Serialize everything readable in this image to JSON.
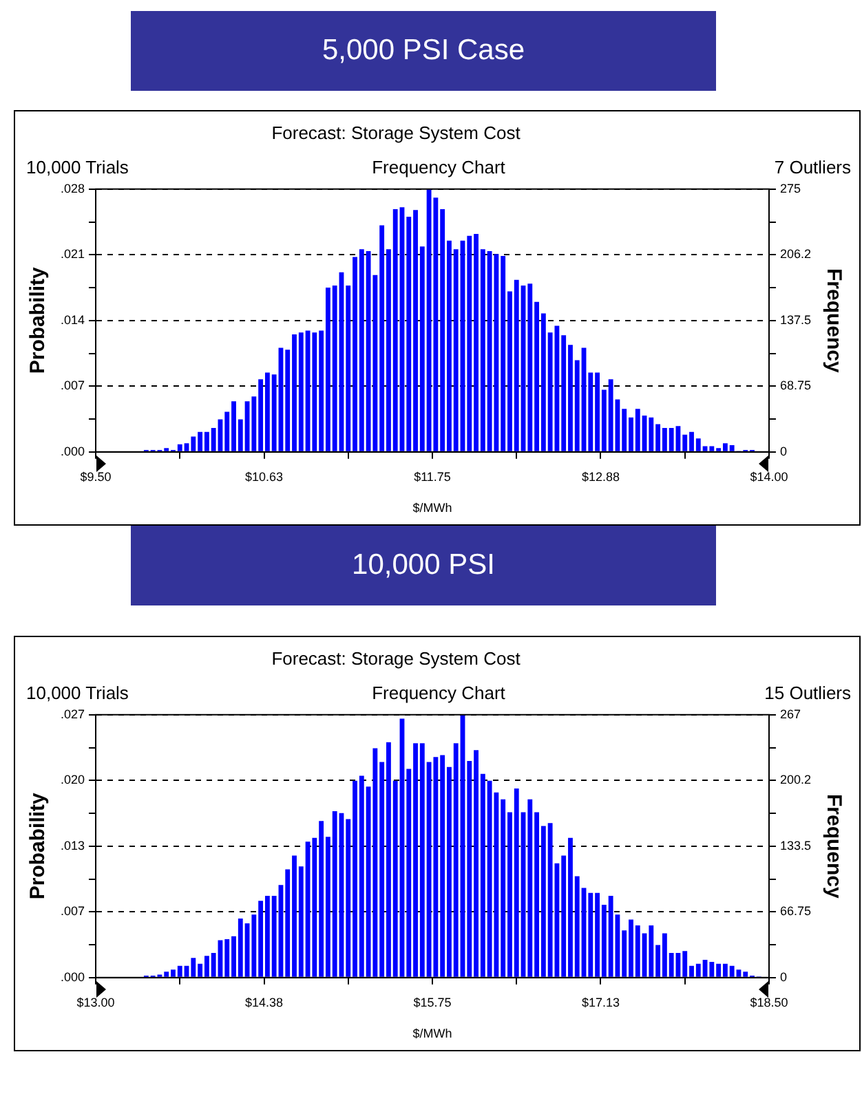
{
  "chart_data": [
    {
      "type": "histogram",
      "title": "5,000 PSI Case",
      "subtitle": "Forecast: Storage System Cost",
      "annotations": [
        "10,000 Trials",
        "Frequency Chart",
        "7 Outliers"
      ],
      "xlabel": "$/MWh",
      "ylabel": "Probability",
      "y2label": "Frequency",
      "grid": "y",
      "bins": [
        9.815,
        9.86,
        9.905,
        9.95,
        9.995,
        10.04,
        10.085,
        10.13,
        10.175,
        10.22,
        10.265,
        10.31,
        10.355,
        10.4,
        10.445,
        10.49,
        10.535,
        10.58,
        10.625,
        10.67,
        10.715,
        10.76,
        10.805,
        10.85,
        10.895,
        10.94,
        10.985,
        11.03,
        11.075,
        11.12,
        11.165,
        11.21,
        11.255,
        11.3,
        11.345,
        11.39,
        11.435,
        11.48,
        11.525,
        11.57,
        11.615,
        11.66,
        11.705,
        11.75,
        11.795,
        11.84,
        11.885,
        11.93,
        11.975,
        12.02,
        12.065,
        12.11,
        12.155,
        12.2,
        12.245,
        12.29,
        12.335,
        12.38,
        12.425,
        12.47,
        12.515,
        12.56,
        12.605,
        12.65,
        12.695,
        12.74,
        12.785,
        12.83,
        12.875,
        12.92,
        12.965,
        13.01,
        13.055,
        13.1,
        13.145,
        13.19,
        13.235,
        13.28,
        13.325,
        13.37,
        13.415,
        13.46,
        13.505,
        13.55,
        13.595,
        13.64,
        13.685,
        13.73,
        13.775,
        13.82,
        13.865,
        13.91
      ],
      "series": [
        {
          "color": "#0000ff",
          "axis": "y2",
          "values": [
            2,
            2,
            2,
            4,
            2,
            8,
            9,
            16,
            21,
            21,
            25,
            34,
            42,
            53,
            34,
            53,
            58,
            76,
            83,
            81,
            109,
            107,
            123,
            125,
            127,
            125,
            127,
            172,
            174,
            188,
            174,
            204,
            212,
            210,
            185,
            237,
            212,
            254,
            256,
            246,
            253,
            215,
            275,
            266,
            254,
            221,
            212,
            221,
            226,
            228,
            212,
            210,
            207,
            205,
            168,
            180,
            174,
            176,
            157,
            145,
            125,
            132,
            122,
            112,
            96,
            109,
            83,
            83,
            65,
            76,
            55,
            45,
            36,
            45,
            38,
            36,
            29,
            25,
            25,
            27,
            18,
            21,
            14,
            6,
            6,
            4,
            9,
            7,
            1,
            2,
            2
          ]
        }
      ],
      "xlim": [
        9.5,
        14
      ],
      "xticks": [
        {
          "value": 9.5,
          "label": "$9.50"
        },
        {
          "value": 10.0625,
          "label": null
        },
        {
          "value": 10.625,
          "label": "$10.63"
        },
        {
          "value": 11.1875,
          "label": null
        },
        {
          "value": 11.75,
          "label": "$11.75"
        },
        {
          "value": 12.3125,
          "label": null
        },
        {
          "value": 12.875,
          "label": "$12.88"
        },
        {
          "value": 13.4375,
          "label": null
        },
        {
          "value": 14,
          "label": "$14.00"
        }
      ],
      "ylim": [
        0,
        0.0275
      ],
      "yticks": [
        {
          "value": 0,
          "label": ".000"
        },
        {
          "value": 0.0034375,
          "label": null
        },
        {
          "value": 0.006875,
          "label": ".007"
        },
        {
          "value": 0.0103125,
          "label": null
        },
        {
          "value": 0.01375,
          "label": ".014"
        },
        {
          "value": 0.0171875,
          "label": null
        },
        {
          "value": 0.020625,
          "label": ".021"
        },
        {
          "value": 0.0240625,
          "label": null
        },
        {
          "value": 0.0275,
          "label": ".028"
        }
      ],
      "y2lim": [
        0,
        275
      ],
      "y2ticks": [
        0,
        {
          "value": 34.375,
          "label": null
        },
        68.75,
        {
          "value": 103.125,
          "label": null
        },
        137.5,
        {
          "value": 171.875,
          "label": null
        },
        {
          "value": 206.25,
          "label": "206.2"
        },
        {
          "value": 240.625,
          "label": null
        },
        275
      ]
    },
    {
      "type": "histogram",
      "title": "10,000 PSI",
      "subtitle": "Forecast: Storage System Cost",
      "annotations": [
        "10,000 Trials",
        "Frequency Chart",
        "15 Outliers"
      ],
      "xlabel": "$/MWh",
      "ylabel": "Probability",
      "y2label": "Frequency",
      "grid": "y",
      "bins": [
        13.385,
        13.44,
        13.495,
        13.55,
        13.605,
        13.66,
        13.715,
        13.77,
        13.825,
        13.88,
        13.935,
        13.99,
        14.045,
        14.1,
        14.155,
        14.21,
        14.265,
        14.32,
        14.375,
        14.43,
        14.485,
        14.54,
        14.595,
        14.65,
        14.705,
        14.76,
        14.815,
        14.87,
        14.925,
        14.98,
        15.035,
        15.09,
        15.145,
        15.2,
        15.255,
        15.31,
        15.365,
        15.42,
        15.475,
        15.53,
        15.585,
        15.64,
        15.695,
        15.75,
        15.805,
        15.86,
        15.915,
        15.97,
        16.025,
        16.08,
        16.135,
        16.19,
        16.245,
        16.3,
        16.355,
        16.41,
        16.465,
        16.52,
        16.575,
        16.63,
        16.685,
        16.74,
        16.795,
        16.85,
        16.905,
        16.96,
        17.015,
        17.07,
        17.125,
        17.18,
        17.235,
        17.29,
        17.345,
        17.4,
        17.455,
        17.51,
        17.565,
        17.62,
        17.675,
        17.73,
        17.785,
        17.84,
        17.895,
        17.95,
        18.005,
        18.06,
        18.115,
        18.17,
        18.225,
        18.28,
        18.335,
        18.39,
        18.445
      ],
      "series": [
        {
          "color": "#0000ff",
          "axis": "y2",
          "values": [
            2,
            2,
            3,
            6,
            8,
            12,
            12,
            20,
            14,
            22,
            25,
            38,
            39,
            42,
            60,
            55,
            64,
            78,
            83,
            83,
            94,
            110,
            124,
            113,
            138,
            142,
            159,
            143,
            169,
            167,
            161,
            200,
            205,
            194,
            233,
            219,
            239,
            200,
            263,
            212,
            238,
            238,
            219,
            224,
            226,
            214,
            238,
            267,
            220,
            231,
            207,
            200,
            188,
            181,
            168,
            192,
            168,
            181,
            168,
            154,
            157,
            116,
            124,
            142,
            103,
            91,
            86,
            86,
            74,
            83,
            64,
            48,
            59,
            53,
            45,
            53,
            33,
            45,
            25,
            25,
            27,
            12,
            14,
            18,
            16,
            14,
            14,
            12,
            8,
            6,
            2,
            1
          ]
        }
      ],
      "xlim": [
        13,
        18.5
      ],
      "xticks": [
        {
          "value": 13,
          "label": "$13.00"
        },
        {
          "value": 13.6875,
          "label": null
        },
        {
          "value": 14.375,
          "label": "$14.38"
        },
        {
          "value": 15.0625,
          "label": null
        },
        {
          "value": 15.75,
          "label": "$15.75"
        },
        {
          "value": 16.4375,
          "label": null
        },
        {
          "value": 17.125,
          "label": "$17.13"
        },
        {
          "value": 17.8125,
          "label": null
        },
        {
          "value": 18.5,
          "label": "$18.50"
        }
      ],
      "ylim": [
        0,
        0.0267
      ],
      "yticks": [
        {
          "value": 0,
          "label": ".000"
        },
        {
          "value": 0.0033375,
          "label": null
        },
        {
          "value": 0.006675,
          "label": ".007"
        },
        {
          "value": 0.0100125,
          "label": null
        },
        {
          "value": 0.01335,
          "label": ".013"
        },
        {
          "value": 0.0166875,
          "label": null
        },
        {
          "value": 0.020025,
          "label": ".020"
        },
        {
          "value": 0.0233625,
          "label": null
        },
        {
          "value": 0.0267,
          "label": ".027"
        }
      ],
      "y2lim": [
        0,
        267
      ],
      "y2ticks": [
        0,
        {
          "value": 33.375,
          "label": null
        },
        66.75,
        {
          "value": 100.125,
          "label": null
        },
        133.5,
        {
          "value": 166.875,
          "label": null
        },
        {
          "value": 200.25,
          "label": "200.2"
        },
        {
          "value": 233.625,
          "label": null
        },
        267
      ]
    }
  ]
}
